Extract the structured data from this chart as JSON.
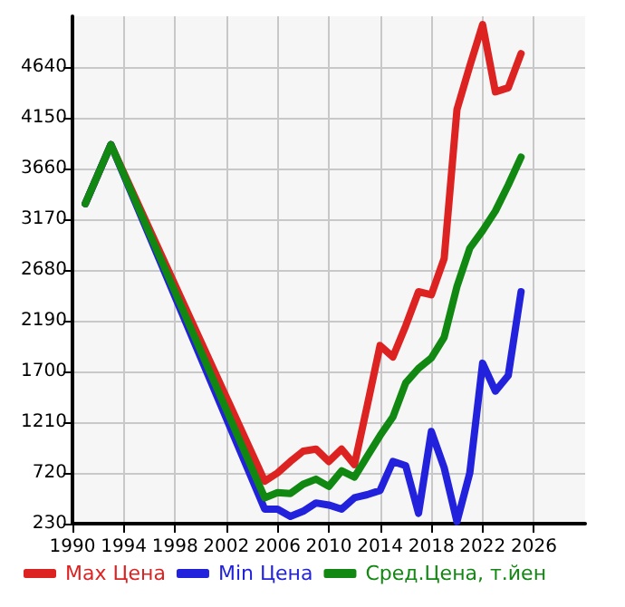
{
  "chart_data": {
    "type": "line",
    "x": [
      1991,
      1993,
      2005,
      2006,
      2007,
      2008,
      2009,
      2010,
      2011,
      2012,
      2013,
      2014,
      2015,
      2016,
      2017,
      2018,
      2019,
      2020,
      2021,
      2022,
      2023,
      2024,
      2025
    ],
    "series": [
      {
        "name": "Max Цена",
        "color": "#dd2222",
        "values": [
          3320,
          3890,
          640,
          720,
          830,
          930,
          950,
          830,
          950,
          800,
          1370,
          1950,
          1840,
          2140,
          2470,
          2440,
          2790,
          4230,
          4650,
          5050,
          4400,
          4440,
          4770
        ]
      },
      {
        "name": "Min Цена",
        "color": "#2222dd",
        "values": [
          3320,
          3890,
          370,
          370,
          300,
          350,
          430,
          410,
          370,
          480,
          510,
          550,
          830,
          790,
          330,
          1120,
          770,
          250,
          720,
          1780,
          1510,
          1660,
          2470
        ]
      },
      {
        "name": "Сред.Цена, т.йен",
        "color": "#118811",
        "values": [
          3320,
          3890,
          480,
          530,
          520,
          610,
          660,
          590,
          740,
          680,
          880,
          1080,
          1260,
          1590,
          1730,
          1830,
          2030,
          2520,
          2890,
          3060,
          3250,
          3500,
          3770
        ]
      }
    ],
    "xlim": [
      1990,
      2030
    ],
    "xticks": [
      1990,
      1994,
      1998,
      2002,
      2006,
      2010,
      2014,
      2018,
      2022,
      2026
    ],
    "ylim": [
      230,
      5130
    ],
    "yticks": [
      230,
      720,
      1210,
      1700,
      2190,
      2680,
      3170,
      3660,
      4150,
      4640
    ],
    "grid": true,
    "legend": "bottom",
    "marker": "none",
    "line_style": "solid"
  }
}
